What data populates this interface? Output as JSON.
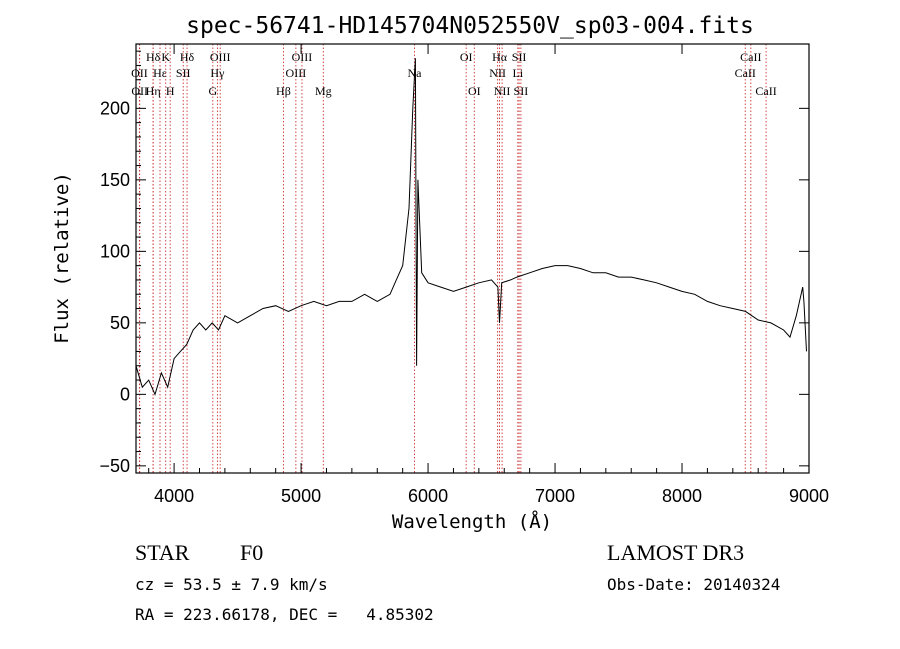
{
  "chart_data": {
    "type": "line",
    "title": "spec-56741-HD145704N052550V_sp03-004.fits",
    "xlabel": "Wavelength (Å)",
    "ylabel": "Flux (relative)",
    "xlim": [
      3700,
      9000
    ],
    "ylim": [
      -55,
      245
    ],
    "x_ticks": [
      4000,
      5000,
      6000,
      7000,
      8000,
      9000
    ],
    "y_ticks": [
      -50,
      0,
      50,
      100,
      150,
      200
    ],
    "series": [
      {
        "name": "spectrum",
        "x": [
          3700,
          3750,
          3800,
          3850,
          3900,
          3950,
          4000,
          4050,
          4100,
          4150,
          4200,
          4250,
          4300,
          4350,
          4400,
          4500,
          4600,
          4700,
          4800,
          4900,
          5000,
          5100,
          5200,
          5300,
          5400,
          5500,
          5600,
          5700,
          5750,
          5800,
          5850,
          5880,
          5900,
          5910,
          5920,
          5950,
          6000,
          6100,
          6200,
          6300,
          6400,
          6500,
          6550,
          6563,
          6580,
          6650,
          6700,
          6800,
          6900,
          7000,
          7100,
          7200,
          7300,
          7400,
          7500,
          7600,
          7700,
          7800,
          7900,
          8000,
          8100,
          8200,
          8300,
          8400,
          8500,
          8600,
          8700,
          8800,
          8850,
          8900,
          8950,
          8960,
          8980
        ],
        "y": [
          20,
          5,
          10,
          0,
          15,
          5,
          25,
          30,
          35,
          45,
          50,
          45,
          50,
          45,
          55,
          50,
          55,
          60,
          62,
          58,
          62,
          65,
          62,
          65,
          65,
          70,
          65,
          70,
          80,
          90,
          130,
          200,
          235,
          20,
          150,
          85,
          78,
          75,
          72,
          75,
          78,
          80,
          75,
          50,
          78,
          80,
          82,
          85,
          88,
          90,
          90,
          88,
          85,
          85,
          82,
          82,
          80,
          78,
          75,
          72,
          70,
          65,
          62,
          60,
          58,
          52,
          50,
          45,
          40,
          55,
          75,
          65,
          30
        ]
      }
    ],
    "spectral_lines": [
      {
        "label": "Hδ",
        "wavelength": 3835,
        "row": 1
      },
      {
        "label": "OII",
        "wavelength": 3727,
        "row": 2
      },
      {
        "label": "OII",
        "wavelength": 3729,
        "row": 3
      },
      {
        "label": "Hε",
        "wavelength": 3889,
        "row": 2
      },
      {
        "label": "Hη",
        "wavelength": 3835,
        "row": 3
      },
      {
        "label": "K",
        "wavelength": 3934,
        "row": 1
      },
      {
        "label": "H",
        "wavelength": 3969,
        "row": 3
      },
      {
        "label": "SII",
        "wavelength": 4072,
        "row": 2
      },
      {
        "label": "Hδ",
        "wavelength": 4102,
        "row": 1
      },
      {
        "label": "OIII",
        "wavelength": 4363,
        "row": 1
      },
      {
        "label": "Hγ",
        "wavelength": 4341,
        "row": 2
      },
      {
        "label": "G",
        "wavelength": 4305,
        "row": 3
      },
      {
        "label": "Hβ",
        "wavelength": 4861,
        "row": 3
      },
      {
        "label": "OIII",
        "wavelength": 4959,
        "row": 2
      },
      {
        "label": "OIII",
        "wavelength": 5007,
        "row": 1
      },
      {
        "label": "Mg",
        "wavelength": 5175,
        "row": 3
      },
      {
        "label": "Na",
        "wavelength": 5893,
        "row": 2
      },
      {
        "label": "OI",
        "wavelength": 6300,
        "row": 1
      },
      {
        "label": "OI",
        "wavelength": 6364,
        "row": 3
      },
      {
        "label": "NII",
        "wavelength": 6548,
        "row": 2
      },
      {
        "label": "Hα",
        "wavelength": 6563,
        "row": 1
      },
      {
        "label": "NII",
        "wavelength": 6583,
        "row": 3
      },
      {
        "label": "SII",
        "wavelength": 6717,
        "row": 1
      },
      {
        "label": "Li",
        "wavelength": 6707,
        "row": 2
      },
      {
        "label": "SII",
        "wavelength": 6731,
        "row": 3
      },
      {
        "label": "CaII",
        "wavelength": 8498,
        "row": 2
      },
      {
        "label": "CaII",
        "wavelength": 8542,
        "row": 1
      },
      {
        "label": "CaII",
        "wavelength": 8662,
        "row": 3
      }
    ],
    "line_color": "#000000",
    "marker_color": "#cc3333"
  },
  "info": {
    "class": "STAR",
    "subclass": "F0",
    "survey": "LAMOST DR3",
    "cz": "cz = 53.5 ± 7.9 km/s",
    "obs_date": "Obs-Date: 20140324",
    "coords": "RA = 223.66178, DEC =   4.85302"
  }
}
